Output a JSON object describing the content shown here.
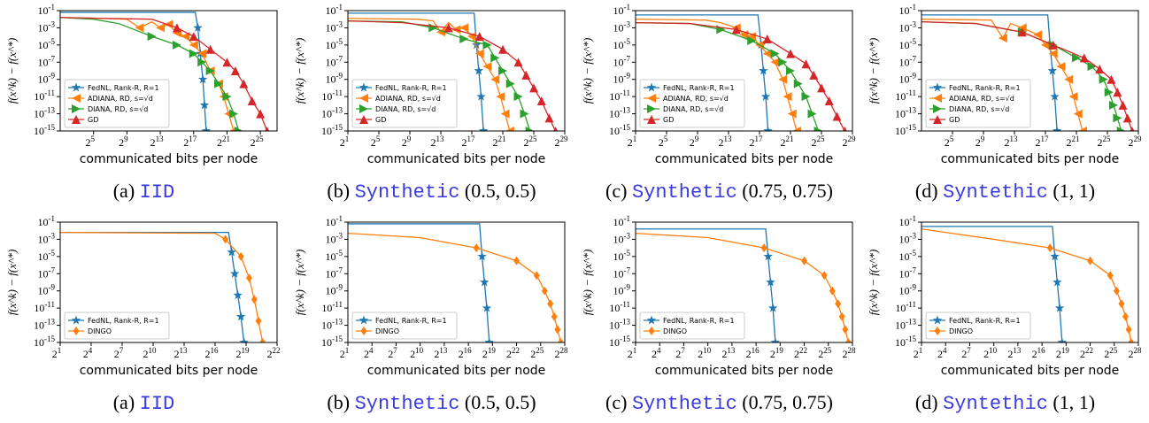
{
  "chart_data": [
    {
      "type": "line",
      "panel_id": "top-a",
      "caption": {
        "prefix": "(a)",
        "dataset": "IID",
        "params": ""
      },
      "xlabel": "communicated bits per node",
      "ylabel": "f(x^k) − f(x^*)",
      "xscale": "log2",
      "yscale": "log10",
      "xlim_log2": [
        1,
        27
      ],
      "ylim_log10": [
        -15,
        -1
      ],
      "xticks_log2": [
        5,
        9,
        13,
        17,
        21,
        25
      ],
      "yticks_log10": [
        -1,
        -3,
        -5,
        -7,
        -9,
        -11,
        -13,
        -15
      ],
      "legend": "lower-left",
      "series": [
        {
          "name": "FedNL, Rank-R, R=1",
          "color": "#1f77b4",
          "marker": "star",
          "x_log2": [
            1,
            17.2,
            17.5,
            17.8,
            18.1,
            18.3,
            18.5
          ],
          "y_log10": [
            -1.2,
            -1.2,
            -3,
            -6,
            -9,
            -12,
            -15
          ]
        },
        {
          "name": "ADIANA, RD, s=√d",
          "color": "#ff7f0e",
          "marker": "tri-left",
          "x_log2": [
            1,
            6,
            9,
            10.5,
            12,
            13,
            14,
            15,
            16,
            17,
            18,
            19,
            20,
            20.6,
            21.2,
            21.8
          ],
          "y_log10": [
            -1.8,
            -1.9,
            -2,
            -3,
            -2.3,
            -3,
            -2.6,
            -3.6,
            -4,
            -5,
            -6,
            -8,
            -9.5,
            -11,
            -13,
            -15
          ]
        },
        {
          "name": "DIANA, RD, s=√d",
          "color": "#2ca02c",
          "marker": "tri-right",
          "x_log2": [
            1,
            5,
            8,
            12,
            15,
            17,
            18,
            19,
            20,
            21,
            21.8,
            22.4
          ],
          "y_log10": [
            -1.8,
            -2,
            -2.5,
            -4,
            -5,
            -6,
            -7,
            -8,
            -9.5,
            -11,
            -13,
            -15
          ]
        },
        {
          "name": "GD",
          "color": "#d62728",
          "marker": "tri-up",
          "x_log2": [
            1,
            6,
            12,
            15,
            17,
            19,
            21,
            22,
            23,
            24,
            25,
            25.8
          ],
          "y_log10": [
            -1.8,
            -1.9,
            -2,
            -3,
            -4,
            -5.5,
            -7,
            -8,
            -9.5,
            -11.5,
            -13,
            -15
          ]
        }
      ]
    },
    {
      "type": "line",
      "panel_id": "top-b",
      "caption": {
        "prefix": "(b)",
        "dataset": "Synthetic",
        "params": "(0.5, 0.5)"
      },
      "xlabel": "communicated bits per node",
      "ylabel": "f(x^k) − f(x^*)",
      "xscale": "log2",
      "yscale": "log10",
      "xlim_log2": [
        1,
        29
      ],
      "ylim_log10": [
        -15,
        -1
      ],
      "xticks_log2": [
        1,
        5,
        9,
        13,
        17,
        21,
        25,
        29
      ],
      "yticks_log10": [
        -1,
        -3,
        -5,
        -7,
        -9,
        -11,
        -13,
        -15
      ],
      "legend": "lower-left",
      "series": [
        {
          "name": "FedNL, Rank-R, R=1",
          "color": "#1f77b4",
          "marker": "star",
          "x_log2": [
            1,
            17.3,
            17.6,
            17.9,
            18.2,
            18.5
          ],
          "y_log10": [
            -1.3,
            -1.3,
            -5,
            -8,
            -11,
            -15
          ]
        },
        {
          "name": "ADIANA, RD, s=√d",
          "color": "#ff7f0e",
          "marker": "tri-left",
          "x_log2": [
            1,
            10,
            12,
            13,
            14,
            15,
            16,
            17,
            18,
            19,
            20,
            20.7,
            21.3,
            21.9
          ],
          "y_log10": [
            -1.9,
            -2,
            -2.2,
            -3.5,
            -2.4,
            -3.2,
            -3,
            -4,
            -6,
            -7.5,
            -9,
            -11,
            -13,
            -15
          ]
        },
        {
          "name": "DIANA, RD, s=√d",
          "color": "#2ca02c",
          "marker": "tri-right",
          "x_log2": [
            1,
            8,
            12,
            16,
            19,
            20,
            21,
            22,
            23,
            23.8,
            24.5
          ],
          "y_log10": [
            -2.2,
            -2.3,
            -3,
            -4.3,
            -5,
            -6.5,
            -8,
            -9.5,
            -11,
            -13,
            -15
          ]
        },
        {
          "name": "GD",
          "color": "#d62728",
          "marker": "tri-up",
          "x_log2": [
            1,
            8,
            14,
            18,
            21,
            23,
            24,
            25,
            26,
            27,
            27.8
          ],
          "y_log10": [
            -2.2,
            -2.4,
            -3,
            -4,
            -5.5,
            -7,
            -8.5,
            -10,
            -11.5,
            -13.5,
            -15
          ]
        }
      ]
    },
    {
      "type": "line",
      "panel_id": "top-c",
      "caption": {
        "prefix": "(c)",
        "dataset": "Synthetic",
        "params": "(0.75, 0.75)"
      },
      "xlabel": "communicated bits per node",
      "ylabel": "f(x^k) − f(x^*)",
      "xscale": "log2",
      "yscale": "log10",
      "xlim_log2": [
        1,
        29
      ],
      "ylim_log10": [
        -15,
        -1
      ],
      "xticks_log2": [
        1,
        5,
        9,
        13,
        17,
        21,
        25,
        29
      ],
      "yticks_log10": [
        -1,
        -3,
        -5,
        -7,
        -9,
        -11,
        -13,
        -15
      ],
      "legend": "lower-left",
      "series": [
        {
          "name": "FedNL, Rank-R, R=1",
          "color": "#1f77b4",
          "marker": "star",
          "x_log2": [
            1,
            16.8,
            17.2,
            17.5,
            17.8,
            18.1
          ],
          "y_log10": [
            -1.5,
            -1.5,
            -5,
            -8,
            -11,
            -15
          ]
        },
        {
          "name": "ADIANA, RD, s=√d",
          "color": "#ff7f0e",
          "marker": "tri-left",
          "x_log2": [
            1,
            10,
            12,
            14,
            15,
            16,
            17,
            18,
            19,
            20,
            20.6,
            21.2,
            21.8
          ],
          "y_log10": [
            -2,
            -2.1,
            -2.4,
            -3,
            -3.8,
            -4,
            -5,
            -6,
            -7,
            -9,
            -11,
            -13,
            -15
          ]
        },
        {
          "name": "DIANA, RD, s=√d",
          "color": "#2ca02c",
          "marker": "tri-right",
          "x_log2": [
            1,
            8,
            12,
            16,
            19,
            20,
            21,
            22,
            23,
            23.8,
            24.6
          ],
          "y_log10": [
            -2.4,
            -2.5,
            -3.2,
            -4.5,
            -6,
            -7,
            -8,
            -9.5,
            -11,
            -13,
            -15
          ]
        },
        {
          "name": "GD",
          "color": "#d62728",
          "marker": "tri-up",
          "x_log2": [
            1,
            8,
            14,
            18,
            21,
            23,
            24,
            25,
            26,
            27,
            28
          ],
          "y_log10": [
            -2.4,
            -2.5,
            -3.2,
            -4.3,
            -6,
            -7.2,
            -8.5,
            -10,
            -11.5,
            -13.3,
            -15
          ]
        }
      ]
    },
    {
      "type": "line",
      "panel_id": "top-d",
      "caption": {
        "prefix": "(d)",
        "dataset": "Syntethic",
        "params": "(1, 1)"
      },
      "xlabel": "communicated bits per node",
      "ylabel": "f(x^k) − f(x^*)",
      "xscale": "log2",
      "yscale": "log10",
      "xlim_log2": [
        1,
        29
      ],
      "ylim_log10": [
        -15,
        -1
      ],
      "xticks_log2": [
        5,
        9,
        13,
        17,
        21,
        25,
        29
      ],
      "yticks_log10": [
        -1,
        -3,
        -5,
        -7,
        -9,
        -11,
        -13,
        -15
      ],
      "legend": "lower-left",
      "series": [
        {
          "name": "FedNL, Rank-R, R=1",
          "color": "#1f77b4",
          "marker": "star",
          "x_log2": [
            1,
            17.3,
            17.6,
            17.9,
            18.2,
            18.5
          ],
          "y_log10": [
            -1.5,
            -1.5,
            -5,
            -8,
            -11,
            -15
          ]
        },
        {
          "name": "ADIANA, RD, s=√d",
          "color": "#ff7f0e",
          "marker": "tri-left",
          "x_log2": [
            1,
            10,
            11.5,
            12.5,
            14,
            16,
            17,
            18,
            19,
            20,
            20.6,
            21.2,
            21.8
          ],
          "y_log10": [
            -2,
            -2.1,
            -4.2,
            -2.5,
            -3,
            -3.8,
            -5,
            -6,
            -7.5,
            -9,
            -11,
            -13,
            -15
          ]
        },
        {
          "name": "DIANA, RD, s=√d",
          "color": "#2ca02c",
          "marker": "tri-right",
          "x_log2": [
            1,
            8,
            14,
            18,
            21,
            23,
            24.5,
            25.2,
            25.8,
            26.3,
            26.8
          ],
          "y_log10": [
            -2.3,
            -2.5,
            -3.5,
            -5,
            -6.5,
            -7.5,
            -9,
            -10.5,
            -12,
            -13.5,
            -15
          ]
        },
        {
          "name": "GD",
          "color": "#d62728",
          "marker": "tri-up",
          "x_log2": [
            1,
            8,
            14,
            18,
            22,
            24,
            25.5,
            26.3,
            27,
            27.6,
            28.2
          ],
          "y_log10": [
            -2.3,
            -2.5,
            -3.5,
            -5,
            -6.5,
            -7.8,
            -9,
            -10.5,
            -12,
            -13.5,
            -15
          ]
        }
      ]
    },
    {
      "type": "line",
      "panel_id": "bottom-a",
      "caption": {
        "prefix": "(a)",
        "dataset": "IID",
        "params": ""
      },
      "xlabel": "communicated bits per node",
      "ylabel": "f(x^k) − f(x^*)",
      "xscale": "log2",
      "yscale": "log10",
      "xlim_log2": [
        1,
        22
      ],
      "ylim_log10": [
        -15,
        -1
      ],
      "xticks_log2": [
        1,
        4,
        7,
        10,
        13,
        16,
        19,
        22
      ],
      "yticks_log10": [
        -1,
        -3,
        -5,
        -7,
        -9,
        -11,
        -13,
        -15
      ],
      "legend": "lower-left",
      "series": [
        {
          "name": "FedNL, Rank-R, R=1",
          "color": "#1f77b4",
          "marker": "star",
          "x_log2": [
            1,
            17.3,
            17.6,
            17.9,
            18.2,
            18.5,
            18.8
          ],
          "y_log10": [
            -2.2,
            -2.2,
            -4.5,
            -7,
            -9.5,
            -12,
            -15
          ]
        },
        {
          "name": "DINGO",
          "color": "#ff7f0e",
          "marker": "diamond",
          "x_log2": [
            1,
            16,
            17,
            18.5,
            19.3,
            19.8,
            20.2,
            20.6
          ],
          "y_log10": [
            -2.2,
            -2.3,
            -3,
            -5,
            -7.5,
            -10,
            -12.5,
            -15
          ]
        }
      ]
    },
    {
      "type": "line",
      "panel_id": "bottom-b",
      "caption": {
        "prefix": "(b)",
        "dataset": "Synthetic",
        "params": "(0.5, 0.5)"
      },
      "xlabel": "communicated bits per node",
      "ylabel": "f(x^k) − f(x^*)",
      "xscale": "log2",
      "yscale": "log10",
      "xlim_log2": [
        1,
        28
      ],
      "ylim_log10": [
        -15,
        -1
      ],
      "xticks_log2": [
        1,
        4,
        7,
        10,
        13,
        16,
        19,
        22,
        25,
        28
      ],
      "yticks_log10": [
        -1,
        -3,
        -5,
        -7,
        -9,
        -11,
        -13,
        -15
      ],
      "legend": "lower-left",
      "series": [
        {
          "name": "FedNL, Rank-R, R=1",
          "color": "#1f77b4",
          "marker": "star",
          "x_log2": [
            1,
            17.4,
            17.7,
            18,
            18.3,
            18.6
          ],
          "y_log10": [
            -1.2,
            -1.2,
            -5,
            -8,
            -11,
            -15
          ]
        },
        {
          "name": "DINGO",
          "color": "#ff7f0e",
          "marker": "diamond",
          "x_log2": [
            1,
            10,
            17,
            22,
            24.5,
            25.5,
            26.2,
            26.7,
            27.1,
            27.5
          ],
          "y_log10": [
            -2.3,
            -2.8,
            -4,
            -5.5,
            -7.2,
            -9,
            -10.5,
            -12,
            -13.5,
            -15
          ]
        }
      ]
    },
    {
      "type": "line",
      "panel_id": "bottom-c",
      "caption": {
        "prefix": "(c)",
        "dataset": "Synthetic",
        "params": "(0.75, 0.75)"
      },
      "xlabel": "communicated bits per node",
      "ylabel": "f(x^k) − f(x^*)",
      "xscale": "log2",
      "yscale": "log10",
      "xlim_log2": [
        1,
        28
      ],
      "ylim_log10": [
        -15,
        -1
      ],
      "xticks_log2": [
        1,
        4,
        7,
        10,
        13,
        16,
        19,
        22,
        25,
        28
      ],
      "yticks_log10": [
        -1,
        -3,
        -5,
        -7,
        -9,
        -11,
        -13,
        -15
      ],
      "legend": "lower-left",
      "series": [
        {
          "name": "FedNL, Rank-R, R=1",
          "color": "#1f77b4",
          "marker": "star",
          "x_log2": [
            1,
            17.2,
            17.5,
            17.8,
            18.1,
            18.4
          ],
          "y_log10": [
            -1.8,
            -1.8,
            -5,
            -8,
            -11,
            -15
          ]
        },
        {
          "name": "DINGO",
          "color": "#ff7f0e",
          "marker": "diamond",
          "x_log2": [
            1,
            10,
            17,
            22,
            24.5,
            25.5,
            26.2,
            26.7,
            27.1,
            27.5
          ],
          "y_log10": [
            -2.3,
            -2.8,
            -4,
            -5.5,
            -7.2,
            -9,
            -10.5,
            -12,
            -13.5,
            -15
          ]
        }
      ]
    },
    {
      "type": "line",
      "panel_id": "bottom-d",
      "caption": {
        "prefix": "(d)",
        "dataset": "Syntethic",
        "params": "(1, 1)"
      },
      "xlabel": "communicated bits per node",
      "ylabel": "f(x^k) − f(x^*)",
      "xscale": "log2",
      "yscale": "log10",
      "xlim_log2": [
        1,
        28
      ],
      "ylim_log10": [
        -15,
        -1
      ],
      "xticks_log2": [
        1,
        4,
        7,
        10,
        13,
        16,
        19,
        22,
        25,
        28
      ],
      "yticks_log10": [
        -1,
        -3,
        -5,
        -7,
        -9,
        -11,
        -13,
        -15
      ],
      "legend": "lower-left",
      "series": [
        {
          "name": "FedNL, Rank-R, R=1",
          "color": "#1f77b4",
          "marker": "star",
          "x_log2": [
            1,
            17.3,
            17.6,
            17.9,
            18.2,
            18.5
          ],
          "y_log10": [
            -1.5,
            -1.5,
            -5,
            -8,
            -11,
            -15
          ]
        },
        {
          "name": "DINGO",
          "color": "#ff7f0e",
          "marker": "diamond",
          "x_log2": [
            1,
            10,
            17,
            22,
            24.5,
            25.3,
            25.9,
            26.4,
            26.8,
            27.1
          ],
          "y_log10": [
            -1.8,
            -3,
            -4,
            -5.5,
            -7.2,
            -9,
            -10.5,
            -12,
            -13.5,
            -15
          ]
        }
      ]
    }
  ]
}
